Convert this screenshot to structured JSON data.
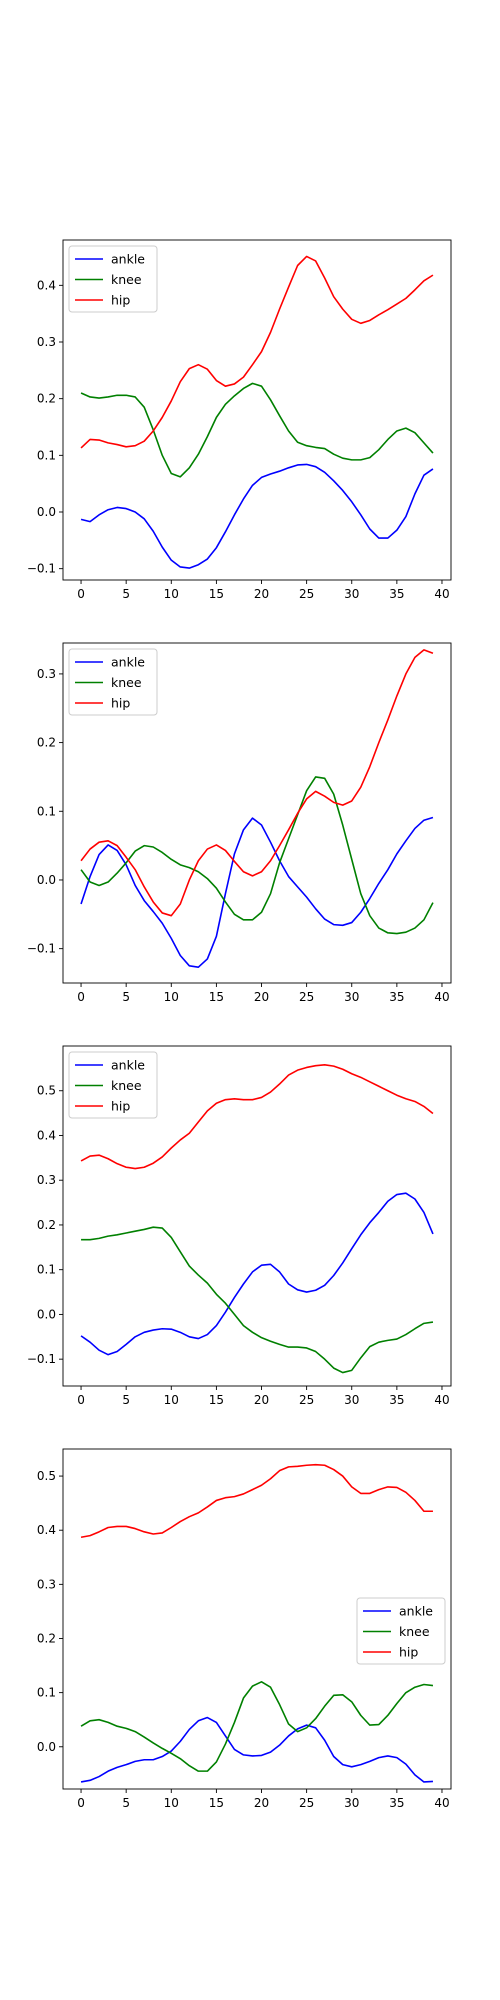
{
  "figure": {
    "background": "#ffffff"
  },
  "chart_data": [
    {
      "type": "line",
      "legend_position": "upper-left",
      "xlim": [
        -2,
        41
      ],
      "ylim": [
        -0.12,
        0.48
      ],
      "xticks": [
        0,
        5,
        10,
        15,
        20,
        25,
        30,
        35,
        40
      ],
      "yticks": [
        -0.1,
        0.0,
        0.1,
        0.2,
        0.3,
        0.4
      ],
      "ytick_labels": [
        "−0.1",
        "0.0",
        "0.1",
        "0.2",
        "0.3",
        "0.4"
      ],
      "series": [
        {
          "name": "ankle",
          "color": "#0000ff",
          "values": [
            -0.013,
            -0.017,
            -0.005,
            0.004,
            0.008,
            0.006,
            0.0,
            -0.012,
            -0.034,
            -0.062,
            -0.085,
            -0.097,
            -0.099,
            -0.093,
            -0.083,
            -0.063,
            -0.035,
            -0.005,
            0.023,
            0.047,
            0.061,
            0.067,
            0.072,
            0.078,
            0.083,
            0.084,
            0.08,
            0.07,
            0.055,
            0.038,
            0.018,
            -0.005,
            -0.03,
            -0.046,
            -0.046,
            -0.032,
            -0.008,
            0.032,
            0.065,
            0.076
          ]
        },
        {
          "name": "knee",
          "color": "#008000",
          "values": [
            0.21,
            0.203,
            0.201,
            0.203,
            0.206,
            0.206,
            0.203,
            0.185,
            0.145,
            0.1,
            0.068,
            0.062,
            0.078,
            0.102,
            0.133,
            0.167,
            0.19,
            0.205,
            0.218,
            0.227,
            0.222,
            0.198,
            0.17,
            0.143,
            0.123,
            0.117,
            0.114,
            0.112,
            0.102,
            0.095,
            0.092,
            0.092,
            0.096,
            0.11,
            0.128,
            0.143,
            0.148,
            0.14,
            0.122,
            0.104
          ]
        },
        {
          "name": "hip",
          "color": "#ff0000",
          "values": [
            0.113,
            0.128,
            0.127,
            0.122,
            0.119,
            0.115,
            0.117,
            0.125,
            0.143,
            0.167,
            0.196,
            0.23,
            0.253,
            0.26,
            0.252,
            0.232,
            0.222,
            0.226,
            0.238,
            0.26,
            0.283,
            0.317,
            0.358,
            0.397,
            0.435,
            0.451,
            0.443,
            0.413,
            0.38,
            0.358,
            0.34,
            0.333,
            0.338,
            0.348,
            0.357,
            0.367,
            0.377,
            0.392,
            0.408,
            0.418
          ]
        }
      ]
    },
    {
      "type": "line",
      "legend_position": "upper-left",
      "xlim": [
        -2,
        41
      ],
      "ylim": [
        -0.15,
        0.345
      ],
      "xticks": [
        0,
        5,
        10,
        15,
        20,
        25,
        30,
        35,
        40
      ],
      "yticks": [
        -0.1,
        0.0,
        0.1,
        0.2,
        0.3
      ],
      "ytick_labels": [
        "−0.1",
        "0.0",
        "0.1",
        "0.2",
        "0.3"
      ],
      "series": [
        {
          "name": "ankle",
          "color": "#0000ff",
          "values": [
            -0.035,
            0.005,
            0.037,
            0.051,
            0.043,
            0.022,
            -0.008,
            -0.03,
            -0.046,
            -0.063,
            -0.085,
            -0.11,
            -0.125,
            -0.127,
            -0.115,
            -0.082,
            -0.02,
            0.038,
            0.073,
            0.09,
            0.08,
            0.055,
            0.028,
            0.005,
            -0.01,
            -0.025,
            -0.042,
            -0.057,
            -0.065,
            -0.066,
            -0.062,
            -0.047,
            -0.027,
            -0.005,
            0.015,
            0.038,
            0.057,
            0.075,
            0.087,
            0.091
          ]
        },
        {
          "name": "knee",
          "color": "#008000",
          "values": [
            0.015,
            -0.003,
            -0.008,
            -0.003,
            0.01,
            0.025,
            0.042,
            0.05,
            0.048,
            0.04,
            0.03,
            0.022,
            0.018,
            0.012,
            0.002,
            -0.012,
            -0.032,
            -0.05,
            -0.058,
            -0.058,
            -0.047,
            -0.02,
            0.025,
            0.06,
            0.095,
            0.13,
            0.15,
            0.148,
            0.125,
            0.08,
            0.03,
            -0.02,
            -0.052,
            -0.07,
            -0.077,
            -0.078,
            -0.076,
            -0.07,
            -0.058,
            -0.033
          ]
        },
        {
          "name": "hip",
          "color": "#ff0000",
          "values": [
            0.028,
            0.045,
            0.055,
            0.057,
            0.05,
            0.033,
            0.015,
            -0.01,
            -0.032,
            -0.048,
            -0.052,
            -0.035,
            0.0,
            0.028,
            0.045,
            0.051,
            0.043,
            0.027,
            0.012,
            0.006,
            0.012,
            0.028,
            0.05,
            0.073,
            0.097,
            0.118,
            0.129,
            0.122,
            0.113,
            0.109,
            0.115,
            0.135,
            0.165,
            0.2,
            0.233,
            0.268,
            0.3,
            0.324,
            0.335,
            0.33
          ]
        }
      ]
    },
    {
      "type": "line",
      "legend_position": "upper-left",
      "xlim": [
        -2,
        41
      ],
      "ylim": [
        -0.16,
        0.6
      ],
      "xticks": [
        0,
        5,
        10,
        15,
        20,
        25,
        30,
        35,
        40
      ],
      "yticks": [
        -0.1,
        0.0,
        0.1,
        0.2,
        0.3,
        0.4,
        0.5
      ],
      "ytick_labels": [
        "−0.1",
        "0.0",
        "0.1",
        "0.2",
        "0.3",
        "0.4",
        "0.5"
      ],
      "series": [
        {
          "name": "ankle",
          "color": "#0000ff",
          "values": [
            -0.048,
            -0.062,
            -0.08,
            -0.09,
            -0.083,
            -0.067,
            -0.05,
            -0.04,
            -0.035,
            -0.032,
            -0.033,
            -0.04,
            -0.05,
            -0.054,
            -0.045,
            -0.025,
            0.005,
            0.038,
            0.068,
            0.095,
            0.11,
            0.112,
            0.095,
            0.068,
            0.055,
            0.05,
            0.054,
            0.065,
            0.087,
            0.115,
            0.147,
            0.178,
            0.205,
            0.228,
            0.253,
            0.268,
            0.271,
            0.258,
            0.228,
            0.18
          ]
        },
        {
          "name": "knee",
          "color": "#008000",
          "values": [
            0.167,
            0.167,
            0.17,
            0.175,
            0.178,
            0.182,
            0.186,
            0.19,
            0.195,
            0.193,
            0.172,
            0.14,
            0.108,
            0.088,
            0.07,
            0.045,
            0.025,
            0.0,
            -0.025,
            -0.04,
            -0.052,
            -0.06,
            -0.067,
            -0.073,
            -0.073,
            -0.075,
            -0.083,
            -0.1,
            -0.12,
            -0.13,
            -0.125,
            -0.097,
            -0.072,
            -0.062,
            -0.058,
            -0.055,
            -0.045,
            -0.032,
            -0.02,
            -0.017
          ]
        },
        {
          "name": "hip",
          "color": "#ff0000",
          "values": [
            0.343,
            0.354,
            0.356,
            0.348,
            0.337,
            0.329,
            0.326,
            0.329,
            0.338,
            0.352,
            0.372,
            0.39,
            0.405,
            0.43,
            0.455,
            0.472,
            0.48,
            0.482,
            0.48,
            0.48,
            0.485,
            0.497,
            0.515,
            0.535,
            0.546,
            0.552,
            0.556,
            0.558,
            0.555,
            0.548,
            0.538,
            0.53,
            0.52,
            0.51,
            0.5,
            0.49,
            0.482,
            0.476,
            0.465,
            0.449
          ]
        }
      ]
    },
    {
      "type": "line",
      "legend_position": "center-right",
      "xlim": [
        -2,
        41
      ],
      "ylim": [
        -0.078,
        0.55
      ],
      "xticks": [
        0,
        5,
        10,
        15,
        20,
        25,
        30,
        35,
        40
      ],
      "yticks": [
        0.0,
        0.1,
        0.2,
        0.3,
        0.4,
        0.5
      ],
      "ytick_labels": [
        "0.0",
        "0.1",
        "0.2",
        "0.3",
        "0.4",
        "0.5"
      ],
      "series": [
        {
          "name": "ankle",
          "color": "#0000ff",
          "values": [
            -0.065,
            -0.062,
            -0.055,
            -0.045,
            -0.038,
            -0.033,
            -0.027,
            -0.024,
            -0.024,
            -0.018,
            -0.008,
            0.01,
            0.032,
            0.048,
            0.054,
            0.045,
            0.02,
            -0.005,
            -0.015,
            -0.017,
            -0.016,
            -0.01,
            0.003,
            0.02,
            0.033,
            0.04,
            0.035,
            0.012,
            -0.018,
            -0.033,
            -0.037,
            -0.033,
            -0.027,
            -0.02,
            -0.017,
            -0.02,
            -0.032,
            -0.052,
            -0.065,
            -0.064
          ]
        },
        {
          "name": "knee",
          "color": "#008000",
          "values": [
            0.038,
            0.048,
            0.05,
            0.045,
            0.038,
            0.034,
            0.028,
            0.018,
            0.007,
            -0.003,
            -0.012,
            -0.022,
            -0.035,
            -0.045,
            -0.045,
            -0.028,
            0.005,
            0.045,
            0.09,
            0.112,
            0.12,
            0.11,
            0.078,
            0.042,
            0.028,
            0.035,
            0.052,
            0.075,
            0.095,
            0.096,
            0.083,
            0.058,
            0.04,
            0.041,
            0.058,
            0.08,
            0.1,
            0.11,
            0.115,
            0.113
          ]
        },
        {
          "name": "hip",
          "color": "#ff0000",
          "values": [
            0.387,
            0.39,
            0.397,
            0.405,
            0.407,
            0.407,
            0.403,
            0.397,
            0.393,
            0.395,
            0.405,
            0.416,
            0.425,
            0.432,
            0.443,
            0.455,
            0.46,
            0.462,
            0.467,
            0.475,
            0.483,
            0.495,
            0.51,
            0.517,
            0.518,
            0.52,
            0.521,
            0.52,
            0.512,
            0.5,
            0.48,
            0.468,
            0.468,
            0.475,
            0.48,
            0.479,
            0.47,
            0.455,
            0.435,
            0.435
          ]
        }
      ]
    }
  ]
}
